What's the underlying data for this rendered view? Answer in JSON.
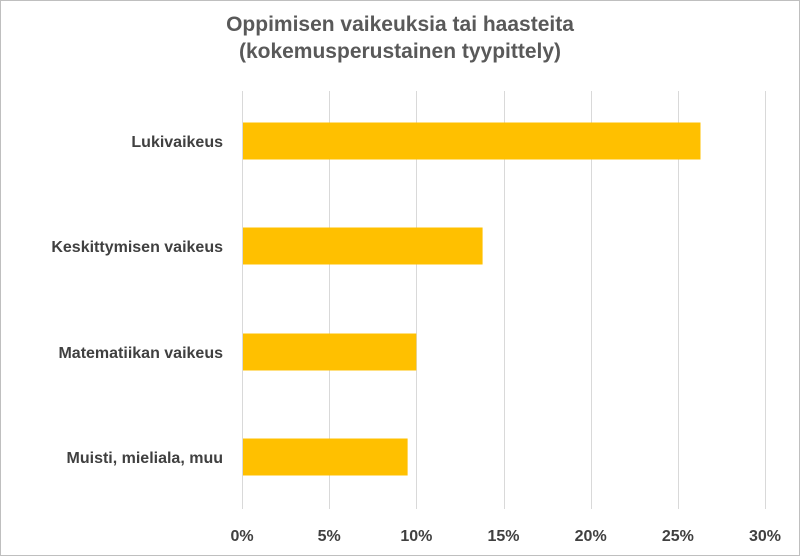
{
  "chart_data": {
    "type": "bar",
    "orientation": "horizontal",
    "title": [
      "Oppimisen vaikeuksia tai haasteita",
      "(kokemusperustainen tyypittely)"
    ],
    "categories": [
      "Lukivaikeus",
      "Keskittymisen vaikeus",
      "Matematiikan vaikeus",
      "Muisti, mieliala, muu"
    ],
    "values": [
      26.3,
      13.8,
      10.0,
      9.5
    ],
    "xlim": [
      0,
      30
    ],
    "xticks": [
      0,
      5,
      10,
      15,
      20,
      25,
      30
    ],
    "xtick_labels": [
      "0%",
      "5%",
      "10%",
      "15%",
      "20%",
      "25%",
      "30%"
    ],
    "grid": "vertical",
    "legend": "none",
    "colors": {
      "bar": "#FFC000",
      "grid": "#d9d9d9",
      "text": "#404040",
      "title": "#595959"
    }
  }
}
